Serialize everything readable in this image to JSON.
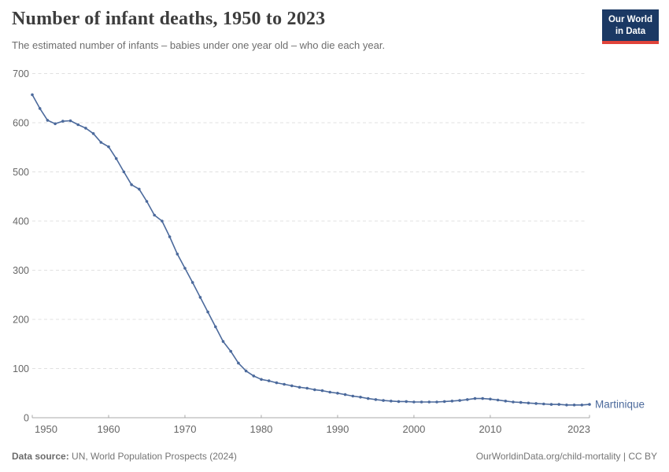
{
  "header": {
    "title": "Number of infant deaths, 1950 to 2023",
    "subtitle": "The estimated number of infants – babies under one year old – who die each year.",
    "logo": {
      "line1": "Our World",
      "line2": "in Data"
    }
  },
  "chart_data": {
    "type": "line",
    "title": "Number of infant deaths, 1950 to 2023",
    "entity_label": "Martinique",
    "line_color": "#4c6a9c",
    "grid": true,
    "xlim": [
      1950,
      2023
    ],
    "ylim": [
      0,
      700
    ],
    "xticks": [
      1950,
      1960,
      1970,
      1980,
      1990,
      2000,
      2010,
      2023
    ],
    "yticks": [
      0,
      100,
      200,
      300,
      400,
      500,
      600,
      700
    ],
    "x": [
      1950,
      1951,
      1952,
      1953,
      1954,
      1955,
      1956,
      1957,
      1958,
      1959,
      1960,
      1961,
      1962,
      1963,
      1964,
      1965,
      1966,
      1967,
      1968,
      1969,
      1970,
      1971,
      1972,
      1973,
      1974,
      1975,
      1976,
      1977,
      1978,
      1979,
      1980,
      1981,
      1982,
      1983,
      1984,
      1985,
      1986,
      1987,
      1988,
      1989,
      1990,
      1991,
      1992,
      1993,
      1994,
      1995,
      1996,
      1997,
      1998,
      1999,
      2000,
      2001,
      2002,
      2003,
      2004,
      2005,
      2006,
      2007,
      2008,
      2009,
      2010,
      2011,
      2012,
      2013,
      2014,
      2015,
      2016,
      2017,
      2018,
      2019,
      2020,
      2021,
      2022,
      2023
    ],
    "series": [
      {
        "name": "Martinique",
        "values": [
          657,
          629,
          605,
          598,
          603,
          604,
          596,
          589,
          578,
          560,
          551,
          527,
          500,
          474,
          465,
          440,
          412,
          400,
          368,
          333,
          304,
          275,
          245,
          215,
          185,
          155,
          135,
          111,
          95,
          85,
          78,
          75,
          71,
          68,
          65,
          62,
          60,
          57,
          55,
          52,
          50,
          47,
          44,
          42,
          39,
          37,
          35,
          34,
          33,
          33,
          32,
          32,
          32,
          32,
          33,
          34,
          35,
          37,
          39,
          39,
          38,
          36,
          34,
          32,
          31,
          30,
          29,
          28,
          27,
          27,
          26,
          26,
          26,
          27
        ]
      }
    ]
  },
  "footer": {
    "source_label": "Data source:",
    "source_text": " UN, World Population Prospects (2024)",
    "link_text": "OurWorldinData.org/child-mortality | CC BY"
  },
  "colors": {
    "line": "#4c6a9c",
    "gridline": "#e0e0e0",
    "axis": "#a8a8a8",
    "tick_text": "#666666",
    "logo_bg": "#1b3964",
    "logo_bar": "#e0433a"
  }
}
